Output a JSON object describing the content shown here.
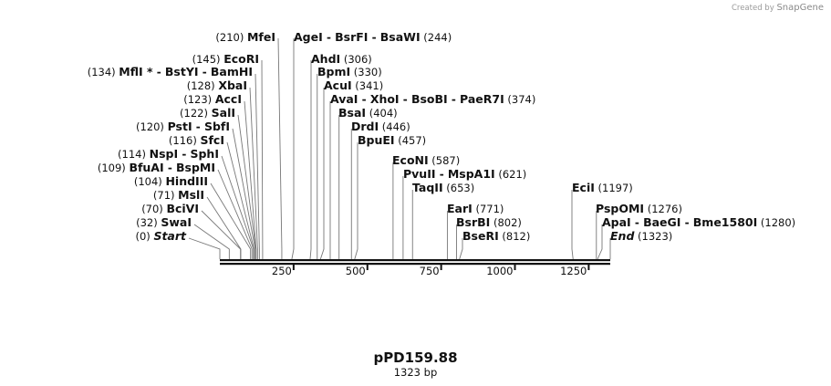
{
  "credit": {
    "prefix": "Created by",
    "brand": "SnapGene"
  },
  "title": "pPD159.88",
  "length_label": "1323 bp",
  "chart_data": {
    "type": "restriction_map",
    "sequence_length": 1323,
    "axis": {
      "ticks": [
        250,
        500,
        750,
        1000,
        1250
      ]
    },
    "features": [
      {
        "enzymes": [
          "MfeI"
        ],
        "pos": 210,
        "side": "left",
        "cut": 210
      },
      {
        "enzymes": [
          "EcoRI"
        ],
        "pos": 145,
        "side": "left",
        "cut": 145
      },
      {
        "enzymes": [
          "MflI *",
          "BstYI",
          "BamHI"
        ],
        "pos": 134,
        "side": "left",
        "cut": 134
      },
      {
        "enzymes": [
          "XbaI"
        ],
        "pos": 128,
        "side": "left",
        "cut": 128
      },
      {
        "enzymes": [
          "AccI"
        ],
        "pos": 123,
        "side": "left",
        "cut": 123
      },
      {
        "enzymes": [
          "SalI"
        ],
        "pos": 122,
        "side": "left",
        "cut": 122
      },
      {
        "enzymes": [
          "PstI",
          "SbfI"
        ],
        "pos": 120,
        "side": "left",
        "cut": 120
      },
      {
        "enzymes": [
          "SfcI"
        ],
        "pos": 116,
        "side": "left",
        "cut": 116
      },
      {
        "enzymes": [
          "NspI",
          "SphI"
        ],
        "pos": 114,
        "side": "left",
        "cut": 114
      },
      {
        "enzymes": [
          "BfuAI",
          "BspMI"
        ],
        "pos": 109,
        "side": "left",
        "cut": 109
      },
      {
        "enzymes": [
          "HindIII"
        ],
        "pos": 104,
        "side": "left",
        "cut": 104
      },
      {
        "enzymes": [
          "MslI"
        ],
        "pos": 71,
        "side": "left",
        "cut": 71
      },
      {
        "enzymes": [
          "BciVI"
        ],
        "pos": 70,
        "side": "left",
        "cut": 70
      },
      {
        "enzymes": [
          "SwaI"
        ],
        "pos": 32,
        "side": "left",
        "cut": 32
      },
      {
        "enzymes": [
          "Start"
        ],
        "pos": 0,
        "side": "left",
        "cut": 0,
        "italic": true
      },
      {
        "enzymes": [
          "AgeI",
          "BsrFI",
          "BsaWI"
        ],
        "pos": 244,
        "side": "right",
        "cut": 244
      },
      {
        "enzymes": [
          "AhdI"
        ],
        "pos": 306,
        "side": "right",
        "cut": 306
      },
      {
        "enzymes": [
          "BpmI"
        ],
        "pos": 330,
        "side": "right",
        "cut": 330
      },
      {
        "enzymes": [
          "AcuI"
        ],
        "pos": 341,
        "side": "right",
        "cut": 341
      },
      {
        "enzymes": [
          "AvaI",
          "XhoI",
          "BsoBI",
          "PaeR7I"
        ],
        "pos": 374,
        "side": "right",
        "cut": 374
      },
      {
        "enzymes": [
          "BsaI"
        ],
        "pos": 404,
        "side": "right",
        "cut": 404
      },
      {
        "enzymes": [
          "DrdI"
        ],
        "pos": 446,
        "side": "right",
        "cut": 446
      },
      {
        "enzymes": [
          "BpuEI"
        ],
        "pos": 457,
        "side": "right",
        "cut": 457
      },
      {
        "enzymes": [
          "EcoNI"
        ],
        "pos": 587,
        "side": "right",
        "cut": 587
      },
      {
        "enzymes": [
          "PvuII",
          "MspA1I"
        ],
        "pos": 621,
        "side": "right",
        "cut": 621
      },
      {
        "enzymes": [
          "TaqII"
        ],
        "pos": 653,
        "side": "right",
        "cut": 653
      },
      {
        "enzymes": [
          "EarI"
        ],
        "pos": 771,
        "side": "right",
        "cut": 771
      },
      {
        "enzymes": [
          "BsrBI"
        ],
        "pos": 802,
        "side": "right",
        "cut": 802
      },
      {
        "enzymes": [
          "BseRI"
        ],
        "pos": 812,
        "side": "right",
        "cut": 812
      },
      {
        "enzymes": [
          "EciI"
        ],
        "pos": 1197,
        "side": "right",
        "cut": 1197
      },
      {
        "enzymes": [
          "PspOMI"
        ],
        "pos": 1276,
        "side": "right",
        "cut": 1276
      },
      {
        "enzymes": [
          "ApaI",
          "BaeGI",
          "Bme1580I"
        ],
        "pos": 1280,
        "side": "right",
        "cut": 1280
      },
      {
        "enzymes": [
          "End"
        ],
        "pos": 1323,
        "side": "right",
        "cut": 1323,
        "italic": true
      }
    ]
  }
}
